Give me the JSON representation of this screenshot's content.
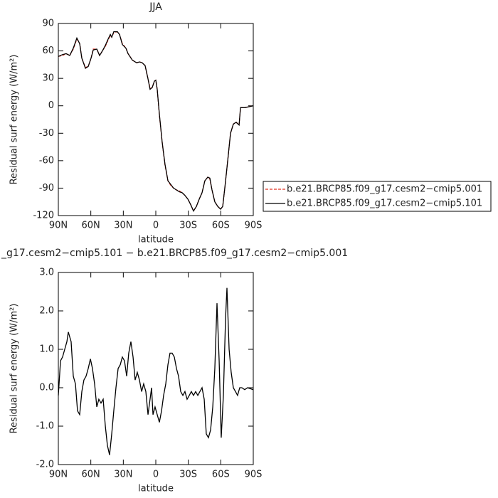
{
  "chart_data": [
    {
      "type": "line",
      "title": "JJA",
      "xlabel": "latitude",
      "ylabel": "Residual surf energy (W/m²)",
      "x": [
        90,
        86.1,
        82.8,
        79.5,
        76.2,
        72.9,
        70.3,
        68.3,
        65.0,
        62.4,
        59.8,
        57.8,
        54.5,
        51.9,
        49.3,
        46.6,
        44.0,
        42.0,
        40.7,
        38.8,
        35.5,
        33.5,
        30.9,
        27.6,
        25.6,
        21.7,
        17.7,
        15.1,
        12.5,
        9.9,
        7.3,
        5.3,
        3.3,
        1.3,
        0,
        -1.3,
        -3.3,
        -5.9,
        -8.5,
        -11.2,
        -13.8,
        -16.4,
        -19.1,
        -21.7,
        -24.3,
        -26.9,
        -29.6,
        -32.2,
        -34.8,
        -37.5,
        -40.1,
        -42.7,
        -45.3,
        -48.0,
        -49.9,
        -51.9,
        -54.5,
        -57.2,
        -59.8,
        -61.8,
        -63.7,
        -66.4,
        -69.0,
        -71.6,
        -74.2,
        -76.9,
        -78.2,
        -82.1,
        -86.1,
        -90
      ],
      "series": [
        {
          "name": "b.e21.BRCP85.f09_g17.cesm2−cmip5.001",
          "color": "#e03020",
          "dashed": true,
          "values": [
            54,
            55,
            57,
            55,
            62,
            73,
            68,
            52,
            42,
            43,
            52,
            62,
            62,
            55,
            60,
            65,
            72,
            77,
            75,
            80,
            81,
            78,
            68,
            63,
            57,
            50,
            47,
            48,
            47,
            44,
            30,
            19,
            20,
            27,
            28,
            18,
            -10,
            -40,
            -65,
            -82,
            -87,
            -90,
            -92,
            -93,
            -95,
            -98,
            -102,
            -108,
            -115,
            -110,
            -102,
            -95,
            -82,
            -78,
            -80,
            -92,
            -105,
            -110,
            -113,
            -110,
            -90,
            -60,
            -30,
            -20,
            -18,
            -21,
            -2,
            -2,
            -1,
            0
          ]
        },
        {
          "name": "b.e21.BRCP85.f09_g17.cesm2−cmip5.101",
          "color": "#000000",
          "dashed": false,
          "values": [
            54,
            56,
            57,
            55,
            63,
            74,
            68,
            52,
            41,
            43,
            52,
            61,
            62,
            55,
            60,
            66,
            73,
            78,
            75,
            81,
            81,
            78,
            67,
            63,
            57,
            50,
            47,
            48,
            47,
            44,
            30,
            18,
            20,
            27,
            28,
            18,
            -9,
            -40,
            -64,
            -82,
            -86,
            -90,
            -92,
            -94,
            -95,
            -98,
            -102,
            -108,
            -115,
            -110,
            -102,
            -95,
            -82,
            -78,
            -79,
            -92,
            -105,
            -110,
            -113,
            -110,
            -90,
            -60,
            -30,
            -20,
            -18,
            -21,
            -2,
            -2,
            -1,
            0
          ]
        }
      ],
      "xlim": [
        90,
        -90
      ],
      "xticks": [
        {
          "value": 90,
          "label": "90N"
        },
        {
          "value": 60,
          "label": "60N"
        },
        {
          "value": 30,
          "label": "30N"
        },
        0,
        {
          "value": -30,
          "label": "30S"
        },
        {
          "value": -60,
          "label": "60S"
        },
        {
          "value": -90,
          "label": "90S"
        }
      ],
      "ylim": [
        -120,
        90
      ],
      "yticks": [
        -120,
        -90,
        -60,
        -30,
        0,
        30,
        60,
        90
      ],
      "legend": "right"
    },
    {
      "type": "line",
      "title": "_g17.cesm2−cmip5.101 − b.e21.BRCP85.f09_g17.cesm2−cmip5.001",
      "xlabel": "latitude",
      "ylabel": "Residual surf energy (W/m²)",
      "x": [
        90,
        88.0,
        86.1,
        84.1,
        82.1,
        80.8,
        78.2,
        76.2,
        74.2,
        72.3,
        70.3,
        68.3,
        66.4,
        64.4,
        62.4,
        60.4,
        58.5,
        56.5,
        54.5,
        52.6,
        50.6,
        48.6,
        46.6,
        44.7,
        42.7,
        40.7,
        38.8,
        36.8,
        34.8,
        32.8,
        30.9,
        28.9,
        26.9,
        25.0,
        23.0,
        21.0,
        19.1,
        17.1,
        15.1,
        13.1,
        11.2,
        9.2,
        7.2,
        5.3,
        3.9,
        2.6,
        0.7,
        -1.3,
        -3.3,
        -5.3,
        -7.2,
        -9.2,
        -11.2,
        -13.1,
        -15.1,
        -17.1,
        -19.1,
        -21.0,
        -23.0,
        -25.0,
        -26.9,
        -28.9,
        -30.9,
        -32.8,
        -34.8,
        -36.8,
        -38.8,
        -40.7,
        -42.7,
        -44.7,
        -46.6,
        -48.6,
        -50.6,
        -52.6,
        -54.5,
        -56.5,
        -58.5,
        -60.4,
        -62.4,
        -64.4,
        -65.7,
        -67.7,
        -69.6,
        -71.6,
        -73.6,
        -75.5,
        -77.5,
        -79.5,
        -82.1,
        -84.7,
        -90
      ],
      "series": [
        {
          "color": "#000000",
          "dashed": false,
          "values": [
            -0.2,
            0.7,
            0.8,
            1.0,
            1.2,
            1.45,
            1.2,
            0.3,
            0.1,
            -0.6,
            -0.7,
            -0.1,
            0.2,
            0.3,
            0.5,
            0.75,
            0.5,
            0.1,
            -0.5,
            -0.3,
            -0.4,
            -0.3,
            -1.0,
            -1.5,
            -1.75,
            -1.2,
            -0.6,
            0.0,
            0.5,
            0.6,
            0.8,
            0.7,
            0.3,
            0.9,
            1.2,
            0.8,
            0.2,
            0.4,
            0.2,
            -0.1,
            0.1,
            -0.1,
            -0.7,
            -0.3,
            0.0,
            -0.7,
            -0.5,
            -0.7,
            -0.9,
            -0.6,
            -0.2,
            0.1,
            0.6,
            0.9,
            0.9,
            0.8,
            0.5,
            0.3,
            -0.1,
            -0.2,
            -0.1,
            -0.3,
            -0.2,
            -0.1,
            -0.2,
            -0.1,
            -0.2,
            -0.1,
            0.0,
            -0.3,
            -1.2,
            -1.3,
            -1.1,
            -0.5,
            0.5,
            2.2,
            0.7,
            -1.3,
            -0.2,
            1.8,
            2.6,
            1.0,
            0.4,
            0.0,
            -0.1,
            -0.2,
            0.0,
            0.0,
            -0.05,
            0.0,
            -0.05
          ]
        }
      ],
      "xlim": [
        90,
        -90
      ],
      "xticks": [
        {
          "value": 90,
          "label": "90N"
        },
        {
          "value": 60,
          "label": "60N"
        },
        {
          "value": 30,
          "label": "30N"
        },
        0,
        {
          "value": -30,
          "label": "30S"
        },
        {
          "value": -60,
          "label": "60S"
        },
        {
          "value": -90,
          "label": "90S"
        }
      ],
      "ylim": [
        -2,
        3
      ],
      "yticks": [
        {
          "value": -2,
          "label": "-2.0"
        },
        {
          "value": -1,
          "label": "-1.0"
        },
        {
          "value": 0,
          "label": "0.0"
        },
        {
          "value": 1,
          "label": "1.0"
        },
        {
          "value": 2,
          "label": "2.0"
        },
        {
          "value": 3,
          "label": "3.0"
        }
      ]
    }
  ]
}
